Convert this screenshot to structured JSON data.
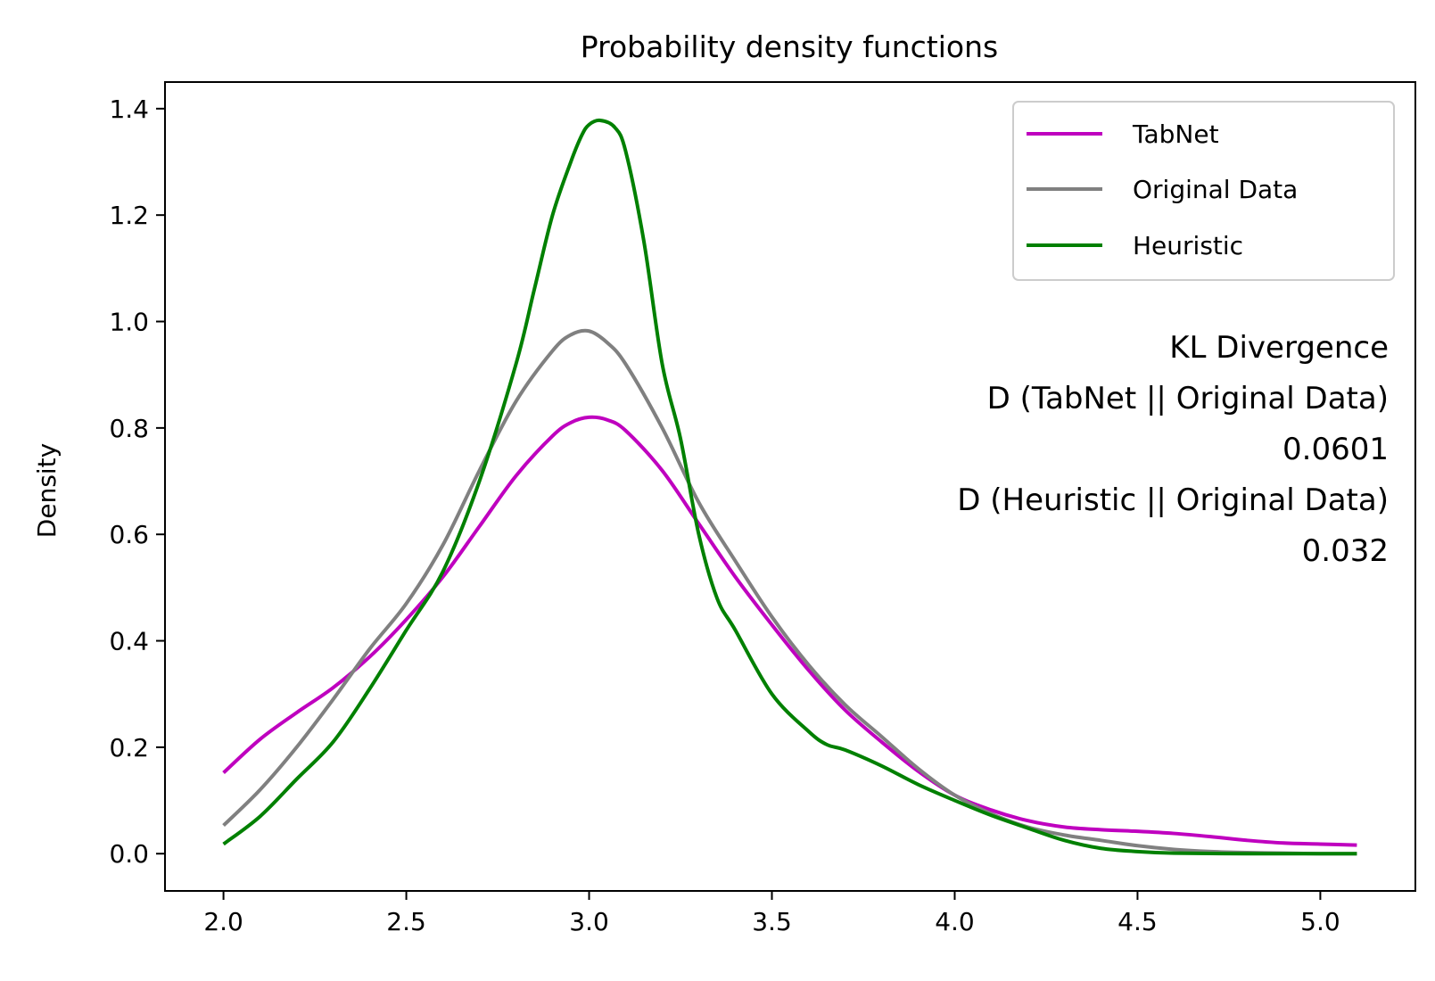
{
  "chart_data": {
    "type": "line",
    "title": "Probability density functions",
    "xlabel": "",
    "ylabel": "Density",
    "xlim": [
      1.84,
      5.26
    ],
    "ylim": [
      -0.07,
      1.45
    ],
    "xticks": [
      2.0,
      2.5,
      3.0,
      3.5,
      4.0,
      4.5,
      5.0
    ],
    "xtick_labels": [
      "2.0",
      "2.5",
      "3.0",
      "3.5",
      "4.0",
      "4.5",
      "5.0"
    ],
    "yticks": [
      0.0,
      0.2,
      0.4,
      0.6,
      0.8,
      1.0,
      1.2,
      1.4
    ],
    "ytick_labels": [
      "0.0",
      "0.2",
      "0.4",
      "0.6",
      "0.8",
      "1.0",
      "1.2",
      "1.4"
    ],
    "grid": false,
    "legend_position": "top-right",
    "series": [
      {
        "name": "TabNet",
        "color": "#bf00bf",
        "x": [
          2.0,
          2.1,
          2.2,
          2.3,
          2.4,
          2.5,
          2.6,
          2.7,
          2.8,
          2.9,
          2.95,
          3.0,
          3.05,
          3.1,
          3.2,
          3.3,
          3.4,
          3.5,
          3.6,
          3.7,
          3.8,
          3.9,
          4.0,
          4.1,
          4.2,
          4.3,
          4.4,
          4.5,
          4.6,
          4.7,
          4.8,
          4.9,
          5.0,
          5.1
        ],
        "y": [
          0.152,
          0.215,
          0.265,
          0.312,
          0.37,
          0.44,
          0.52,
          0.615,
          0.71,
          0.785,
          0.81,
          0.82,
          0.815,
          0.795,
          0.72,
          0.62,
          0.52,
          0.43,
          0.345,
          0.27,
          0.21,
          0.155,
          0.11,
          0.082,
          0.062,
          0.05,
          0.045,
          0.042,
          0.038,
          0.032,
          0.025,
          0.02,
          0.018,
          0.016
        ]
      },
      {
        "name": "Original Data",
        "color": "#808080",
        "x": [
          2.0,
          2.1,
          2.2,
          2.3,
          2.4,
          2.5,
          2.6,
          2.7,
          2.8,
          2.9,
          2.95,
          3.0,
          3.05,
          3.1,
          3.2,
          3.3,
          3.4,
          3.5,
          3.6,
          3.7,
          3.8,
          3.9,
          4.0,
          4.1,
          4.2,
          4.3,
          4.4,
          4.5,
          4.6,
          4.7,
          4.8,
          4.9,
          5.0,
          5.1
        ],
        "y": [
          0.053,
          0.12,
          0.2,
          0.29,
          0.385,
          0.47,
          0.58,
          0.72,
          0.85,
          0.945,
          0.975,
          0.982,
          0.96,
          0.92,
          0.8,
          0.66,
          0.55,
          0.445,
          0.355,
          0.28,
          0.22,
          0.16,
          0.11,
          0.075,
          0.05,
          0.035,
          0.025,
          0.015,
          0.008,
          0.004,
          0.002,
          0.001,
          0.0,
          0.0
        ]
      },
      {
        "name": "Heuristic",
        "color": "#008000",
        "x": [
          2.0,
          2.1,
          2.2,
          2.3,
          2.4,
          2.5,
          2.6,
          2.7,
          2.8,
          2.85,
          2.9,
          2.95,
          2.98,
          3.0,
          3.03,
          3.07,
          3.1,
          3.15,
          3.2,
          3.25,
          3.3,
          3.35,
          3.4,
          3.5,
          3.6,
          3.65,
          3.7,
          3.8,
          3.9,
          4.0,
          4.1,
          4.2,
          4.3,
          4.4,
          4.5,
          4.6,
          4.8,
          5.0,
          5.1
        ],
        "y": [
          0.018,
          0.07,
          0.14,
          0.21,
          0.31,
          0.42,
          0.53,
          0.7,
          0.92,
          1.06,
          1.2,
          1.3,
          1.35,
          1.37,
          1.378,
          1.365,
          1.32,
          1.15,
          0.92,
          0.78,
          0.6,
          0.48,
          0.42,
          0.3,
          0.23,
          0.205,
          0.195,
          0.165,
          0.13,
          0.1,
          0.072,
          0.048,
          0.025,
          0.01,
          0.004,
          0.001,
          0.0,
          0.0,
          0.0
        ]
      }
    ],
    "annotation_lines": [
      "KL Divergence",
      "D (TabNet || Original Data)",
      "0.0601",
      "D (Heuristic || Original Data)",
      "0.032"
    ]
  }
}
